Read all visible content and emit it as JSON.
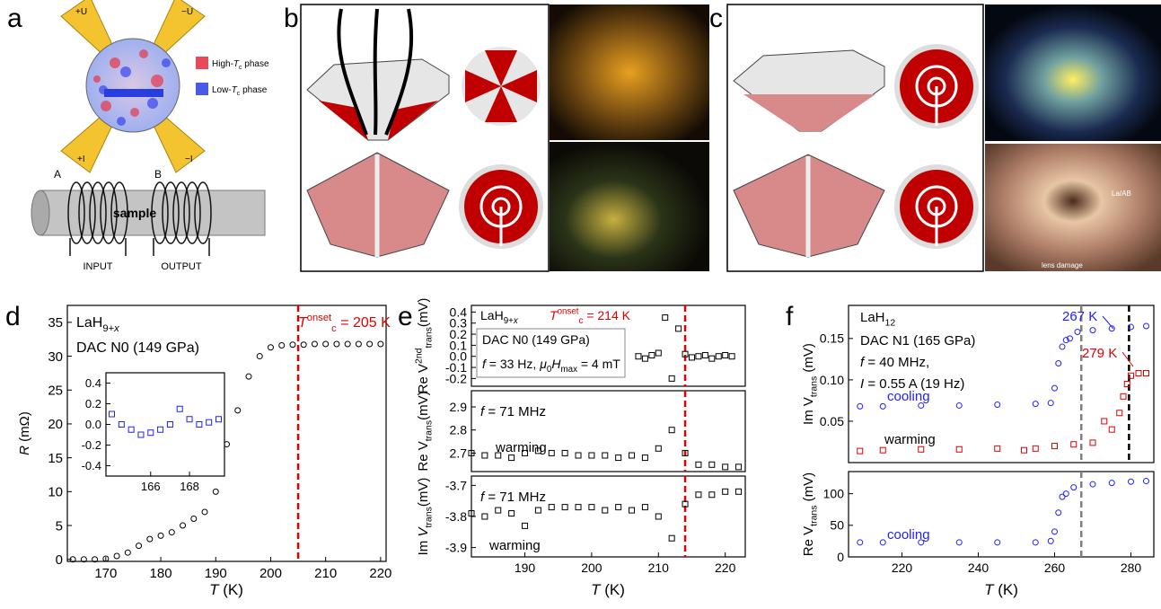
{
  "panel_letters": [
    "a",
    "b",
    "c",
    "d",
    "e",
    "f"
  ],
  "diagram_a": {
    "electrodes": [
      "+U",
      "−U",
      "+I",
      "−I"
    ],
    "legend": [
      [
        {
          "t": "High-"
        },
        {
          "t": "T",
          "italic": true
        },
        {
          "sub": "c"
        },
        {
          "t": " phase"
        }
      ],
      [
        {
          "t": "Low-"
        },
        {
          "t": "T",
          "italic": true
        },
        {
          "sub": "c"
        },
        {
          "t": " phase"
        }
      ]
    ],
    "coil_labels": [
      "A",
      "B"
    ],
    "sample": "sample",
    "ports": [
      "INPUT",
      "OUTPUT"
    ]
  },
  "photo_c": {
    "labels": [
      "La/AB",
      "lens damage"
    ]
  },
  "chart_data": [
    {
      "type": "scatter",
      "marker": "circle",
      "xlim": [
        163,
        221
      ],
      "ylim": [
        -0.3,
        37.5
      ],
      "xticks": [
        170,
        180,
        190,
        200,
        210,
        220
      ],
      "yticks": [
        0,
        5,
        10,
        15,
        20,
        25,
        30,
        35
      ],
      "xlabel": [
        {
          "t": "T",
          "italic": true
        },
        {
          "t": " (K)"
        }
      ],
      "ylabel": [
        {
          "t": "R",
          "italic": true
        },
        {
          "t": " (mΩ)"
        }
      ],
      "vlines": [
        {
          "x": 205,
          "color": "#e00000"
        }
      ],
      "notes": [
        {
          "parts": [
            {
              "t": "LaH"
            },
            {
              "sub": "9+"
            },
            {
              "sub": "x",
              "italic": true
            }
          ],
          "color": "#000000"
        },
        {
          "parts": [
            {
              "t": "DAC N0 (149 GPa)"
            }
          ],
          "color": "#000000"
        },
        {
          "parts": [
            {
              "t": "T",
              "italic": true
            },
            {
              "sup": "onset"
            },
            {
              "sub": "c"
            },
            {
              "t": " = 205 K"
            }
          ],
          "color": "#e00000"
        }
      ],
      "series": [
        {
          "color": "#000000",
          "x": [
            164,
            166,
            168,
            170,
            172,
            174,
            176,
            178,
            180,
            182,
            184,
            186,
            188,
            190,
            192,
            194,
            196,
            198,
            200,
            202,
            204,
            206,
            208,
            210,
            212,
            214,
            216,
            218,
            220
          ],
          "values": [
            0,
            0,
            0,
            0.1,
            0.5,
            1,
            2,
            3,
            3.5,
            4,
            5,
            6,
            7,
            10,
            17,
            22,
            27,
            30,
            31.3,
            31.6,
            31.7,
            31.7,
            31.8,
            31.8,
            31.8,
            31.8,
            31.8,
            31.8,
            31.8
          ]
        }
      ]
    },
    {
      "type": "scatter",
      "marker": "square",
      "xlim": [
        163.7,
        169.8
      ],
      "ylim": [
        -0.5,
        0.5
      ],
      "xticks": [
        166,
        168
      ],
      "yticks": [
        0.4,
        0.2,
        {
          "value": 0,
          "label": "0.0"
        },
        -0.2,
        -0.4
      ],
      "series": [
        {
          "color": "#2020ff",
          "x": [
            164,
            164.5,
            165,
            165.5,
            166,
            166.5,
            167,
            167.5,
            168,
            168.5,
            169,
            169.5
          ],
          "values": [
            0.1,
            0,
            -0.05,
            -0.1,
            -0.08,
            -0.05,
            0,
            0.15,
            0.05,
            0,
            0.02,
            0.05
          ]
        }
      ]
    },
    {
      "type": "scatter",
      "marker": "square",
      "xlim": [
        182,
        223
      ],
      "ylim": [
        -0.27,
        0.46
      ],
      "yticks": [
        0.4,
        0.3,
        0.2,
        0.1,
        {
          "value": 0,
          "label": "0.0"
        },
        -0.1,
        -0.2
      ],
      "ylabel": [
        {
          "t": "Re V"
        },
        {
          "sup": "2nd"
        },
        {
          "sub": "trans"
        },
        {
          "t": "(mV)"
        }
      ],
      "vlines": [
        {
          "x": 214,
          "color": "#e00000"
        }
      ],
      "notes": [
        {
          "parts": [
            {
              "t": "LaH"
            },
            {
              "sub": "9+"
            },
            {
              "sub": "x",
              "italic": true
            }
          ],
          "color": "#000000"
        },
        {
          "parts": [
            {
              "t": "T",
              "italic": true
            },
            {
              "sup": "onset"
            },
            {
              "sub": "c"
            },
            {
              "t": " = 214 K"
            }
          ],
          "color": "#e00000"
        },
        {
          "parts": [
            {
              "t": "DAC N0 (149 GPa)"
            }
          ],
          "color": "#000000"
        },
        {
          "parts": [
            {
              "t": "f",
              "italic": true
            },
            {
              "t": " = 33 Hz, "
            },
            {
              "t": "μ",
              "italic": true
            },
            {
              "sub": "0"
            },
            {
              "t": "H",
              "italic": true
            },
            {
              "sub": "max"
            },
            {
              "t": " = 4 mT"
            }
          ],
          "color": "#000000"
        }
      ],
      "series": [
        {
          "color": "#000000",
          "x": [
            207,
            208,
            209,
            210,
            211,
            212,
            213,
            214,
            215,
            216,
            217,
            218,
            219,
            220,
            221
          ],
          "values": [
            0,
            -0.02,
            0.01,
            0.03,
            0.35,
            -0.2,
            0.25,
            0.02,
            -0.01,
            0,
            0.01,
            -0.02,
            0,
            0.01,
            0
          ]
        }
      ]
    },
    {
      "type": "scatter",
      "marker": "square",
      "xlim": [
        182,
        223
      ],
      "ylim": [
        2.62,
        2.97
      ],
      "yticks": [
        2.7,
        2.8,
        2.9
      ],
      "ylabel": [
        {
          "t": "Re V"
        },
        {
          "sub": "trans"
        },
        {
          "t": "(mV)"
        }
      ],
      "vlines": [
        {
          "x": 214,
          "color": "#e00000"
        }
      ],
      "notes": [
        {
          "parts": [
            {
              "t": "f",
              "italic": true
            },
            {
              "t": " = 71 MHz"
            }
          ],
          "color": "#000000"
        },
        {
          "parts": [
            {
              "t": "warming"
            }
          ],
          "color": "#000000"
        }
      ],
      "series": [
        {
          "color": "#000000",
          "x": [
            182,
            184,
            186,
            188,
            190,
            192,
            194,
            196,
            198,
            200,
            202,
            204,
            206,
            208,
            210,
            212,
            214,
            216,
            218,
            220,
            222
          ],
          "values": [
            2.7,
            2.69,
            2.69,
            2.68,
            2.7,
            2.71,
            2.7,
            2.7,
            2.69,
            2.69,
            2.69,
            2.68,
            2.69,
            2.68,
            2.72,
            2.8,
            2.7,
            2.65,
            2.65,
            2.64,
            2.64
          ]
        }
      ]
    },
    {
      "type": "scatter",
      "marker": "square",
      "xlim": [
        182,
        223
      ],
      "ylim": [
        -3.93,
        -3.67
      ],
      "xticks": [
        190,
        200,
        210,
        220
      ],
      "yticks": [
        -3.7,
        -3.8,
        -3.9
      ],
      "xlabel": [
        {
          "t": "T",
          "italic": true
        },
        {
          "t": " (K)"
        }
      ],
      "ylabel": [
        {
          "t": "Im "
        },
        {
          "t": "V",
          "italic": true
        },
        {
          "sub": "trans"
        },
        {
          "t": "(mV)"
        }
      ],
      "vlines": [
        {
          "x": 214,
          "color": "#e00000"
        }
      ],
      "notes": [
        {
          "parts": [
            {
              "t": "f",
              "italic": true
            },
            {
              "t": " = 71 MHz"
            }
          ],
          "color": "#000000"
        },
        {
          "parts": [
            {
              "t": "warming"
            }
          ],
          "color": "#000000"
        }
      ],
      "series": [
        {
          "color": "#000000",
          "x": [
            182,
            184,
            186,
            188,
            190,
            192,
            194,
            196,
            198,
            200,
            202,
            204,
            206,
            208,
            210,
            212,
            214,
            216,
            218,
            220,
            222
          ],
          "values": [
            -3.79,
            -3.8,
            -3.78,
            -3.79,
            -3.83,
            -3.78,
            -3.77,
            -3.77,
            -3.77,
            -3.77,
            -3.78,
            -3.77,
            -3.78,
            -3.77,
            -3.8,
            -3.87,
            -3.76,
            -3.73,
            -3.73,
            -3.72,
            -3.72
          ]
        }
      ]
    },
    {
      "type": "scatter",
      "marker": "circle",
      "xlim": [
        206,
        286
      ],
      "ylim": [
        0,
        0.19
      ],
      "yticks": [
        0.05,
        {
          "value": 0.1,
          "label": "0.10"
        },
        0.15
      ],
      "ylabel": [
        {
          "t": "Im V"
        },
        {
          "sub": "trans"
        },
        {
          "t": " (mV)"
        }
      ],
      "vlines": [
        {
          "x": 267,
          "color": "#808080"
        },
        {
          "x": 279.5,
          "color": "#000000"
        }
      ],
      "notes": [
        {
          "parts": [
            {
              "t": "LaH"
            },
            {
              "sub": "12"
            }
          ],
          "color": "#000000"
        },
        {
          "parts": [
            {
              "t": "DAC N1 (165 GPa)"
            }
          ],
          "color": "#000000"
        },
        {
          "parts": [
            {
              "t": "f",
              "italic": true
            },
            {
              "t": " = 40 MHz,"
            }
          ],
          "color": "#000000"
        },
        {
          "parts": [
            {
              "t": "I",
              "italic": true
            },
            {
              "t": " = 0.55 A (19 Hz)"
            }
          ],
          "color": "#000000"
        },
        {
          "parts": [
            {
              "t": "cooling"
            }
          ],
          "color": "#2020ff"
        },
        {
          "parts": [
            {
              "t": "warming"
            }
          ],
          "color": "#000000"
        },
        {
          "parts": [
            {
              "t": "267 K"
            }
          ],
          "color": "#2020ff"
        },
        {
          "parts": [
            {
              "t": "279 K"
            }
          ],
          "color": "#e00000"
        }
      ],
      "series": [
        {
          "name": "cooling",
          "color": "#2020ff",
          "marker": "circle",
          "x": [
            209,
            215,
            225,
            235,
            245,
            255,
            259,
            260,
            261,
            262,
            263,
            264,
            266,
            270,
            275,
            280,
            284
          ],
          "values": [
            0.068,
            0.068,
            0.069,
            0.069,
            0.07,
            0.071,
            0.072,
            0.09,
            0.12,
            0.14,
            0.148,
            0.15,
            0.158,
            0.16,
            0.162,
            0.164,
            0.165
          ]
        },
        {
          "name": "warming",
          "color": "#e00000",
          "marker": "square",
          "x": [
            209,
            215,
            225,
            235,
            245,
            252,
            255,
            260,
            265,
            270,
            273,
            275,
            277,
            278,
            279,
            280,
            282,
            284
          ],
          "values": [
            0.014,
            0.015,
            0.016,
            0.016,
            0.017,
            0.015,
            0.017,
            0.02,
            0.022,
            0.024,
            0.05,
            0.04,
            0.06,
            0.08,
            0.095,
            0.105,
            0.108,
            0.108
          ]
        }
      ]
    },
    {
      "type": "scatter",
      "marker": "circle",
      "xlim": [
        206,
        286
      ],
      "ylim": [
        0,
        135
      ],
      "xticks": [
        220,
        240,
        260,
        280
      ],
      "yticks": [
        0,
        50,
        100
      ],
      "xlabel": [
        {
          "t": "T",
          "italic": true
        },
        {
          "t": " (K)"
        }
      ],
      "ylabel": [
        {
          "t": "Re V"
        },
        {
          "sub": "trans"
        },
        {
          "t": " (mV)"
        }
      ],
      "vlines": [
        {
          "x": 267,
          "color": "#808080"
        }
      ],
      "notes": [
        {
          "parts": [
            {
              "t": "cooling"
            }
          ],
          "color": "#2020ff"
        }
      ],
      "series": [
        {
          "name": "cooling",
          "color": "#2020ff",
          "marker": "circle",
          "x": [
            209,
            215,
            225,
            235,
            245,
            255,
            259,
            260,
            261,
            262,
            263,
            265,
            270,
            275,
            280,
            284
          ],
          "values": [
            23,
            23,
            23,
            23,
            23,
            23,
            25,
            40,
            70,
            95,
            100,
            110,
            115,
            117,
            119,
            120
          ]
        }
      ]
    }
  ]
}
